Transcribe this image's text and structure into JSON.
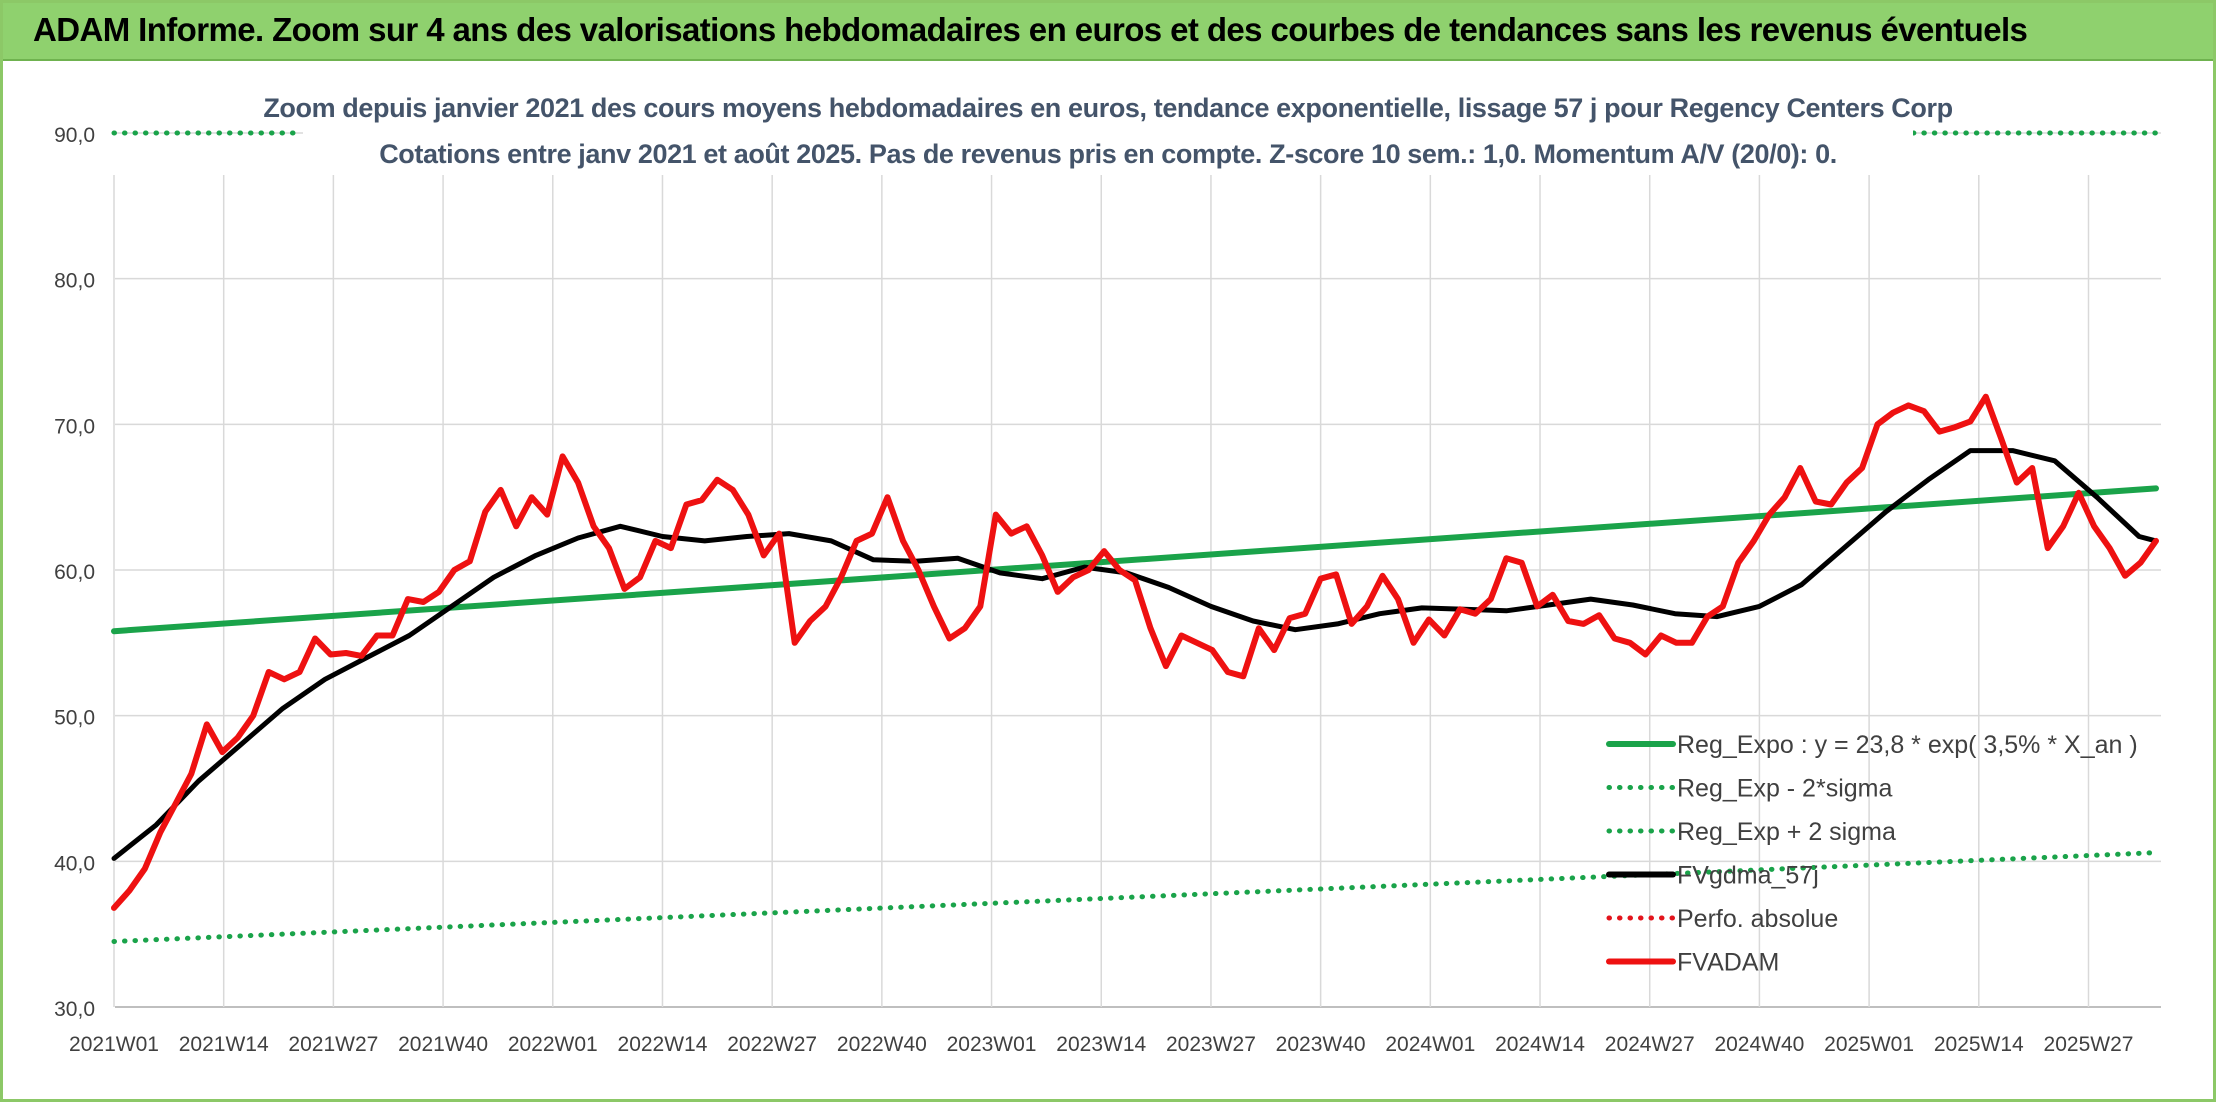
{
  "banner": {
    "title": "ADAM Informe. Zoom sur 4 ans des valorisations hebdomadaires en euros et des courbes de tendances sans les revenus éventuels"
  },
  "chart_data": {
    "type": "line",
    "title_line1": "Zoom depuis janvier 2021 des cours moyens hebdomadaires en euros, tendance exponentielle, lissage 57 j pour Regency Centers Corp",
    "title_line2": "Cotations entre janv 2021 et août 2025. Pas de revenus pris en compte. Z-score 10 sem.: 1,0. Momentum A/V (20/0): 0.",
    "ylim": [
      30,
      90
    ],
    "y_ticks": [
      "30,0",
      "40,0",
      "50,0",
      "60,0",
      "70,0",
      "80,0",
      "90,0"
    ],
    "x_ticks": [
      "2021W01",
      "2021W14",
      "2021W27",
      "2021W40",
      "2022W01",
      "2022W14",
      "2022W27",
      "2022W40",
      "2023W01",
      "2023W14",
      "2023W27",
      "2023W40",
      "2024W01",
      "2024W14",
      "2024W27",
      "2024W40",
      "2025W01",
      "2025W14",
      "2025W27"
    ],
    "grid": true,
    "legend_position": "bottom-right",
    "series": [
      {
        "name": "Reg_Expo : y = 23,8 * exp( 3,5% *  X_an )",
        "color": "#1aa34a",
        "style": "solid",
        "width": 6,
        "points": [
          [
            0,
            55.8
          ],
          [
            242,
            65.6
          ]
        ]
      },
      {
        "name": "Reg_Exp - 2*sigma",
        "color": "#1aa34a",
        "style": "dotted",
        "width": 5,
        "points": [
          [
            0,
            34.5
          ],
          [
            242,
            40.6
          ]
        ]
      },
      {
        "name": "Reg_Exp + 2 sigma",
        "color": "#1aa34a",
        "style": "dotted",
        "width": 5,
        "points": [
          [
            0,
            90.0
          ],
          [
            22,
            90.0
          ],
          [
            212,
            90.0
          ],
          [
            242,
            90.0
          ]
        ],
        "segments": [
          [
            0,
            22
          ],
          [
            212,
            242
          ]
        ]
      },
      {
        "name": "FVgdma_57j",
        "color": "#000000",
        "style": "solid",
        "width": 5,
        "points": [
          [
            0,
            40.2
          ],
          [
            5,
            42.5
          ],
          [
            10,
            45.5
          ],
          [
            15,
            48
          ],
          [
            20,
            50.5
          ],
          [
            25,
            52.5
          ],
          [
            30,
            54
          ],
          [
            35,
            55.5
          ],
          [
            40,
            57.5
          ],
          [
            45,
            59.5
          ],
          [
            50,
            61
          ],
          [
            55,
            62.2
          ],
          [
            60,
            63
          ],
          [
            65,
            62.3
          ],
          [
            70,
            62
          ],
          [
            75,
            62.3
          ],
          [
            80,
            62.5
          ],
          [
            85,
            62
          ],
          [
            90,
            60.7
          ],
          [
            95,
            60.6
          ],
          [
            100,
            60.8
          ],
          [
            105,
            59.8
          ],
          [
            110,
            59.4
          ],
          [
            115,
            60.2
          ],
          [
            120,
            59.8
          ],
          [
            125,
            58.8
          ],
          [
            130,
            57.5
          ],
          [
            135,
            56.5
          ],
          [
            140,
            55.9
          ],
          [
            145,
            56.3
          ],
          [
            150,
            57
          ],
          [
            155,
            57.4
          ],
          [
            160,
            57.3
          ],
          [
            165,
            57.2
          ],
          [
            170,
            57.6
          ],
          [
            175,
            58
          ],
          [
            180,
            57.6
          ],
          [
            185,
            57
          ],
          [
            190,
            56.8
          ],
          [
            195,
            57.5
          ],
          [
            200,
            59
          ],
          [
            205,
            61.5
          ],
          [
            210,
            64
          ],
          [
            215,
            66.2
          ],
          [
            220,
            68.2
          ],
          [
            225,
            68.2
          ],
          [
            230,
            67.5
          ],
          [
            235,
            65
          ],
          [
            240,
            62.3
          ],
          [
            242,
            62
          ]
        ]
      },
      {
        "name": "Perfo. absolue",
        "color": "#e3141c",
        "style": "dotted",
        "width": 4,
        "points": []
      },
      {
        "name": "FVADAM",
        "color": "#ee1111",
        "style": "solid",
        "width": 6,
        "points": [
          [
            0,
            36.8
          ],
          [
            2,
            38
          ],
          [
            4,
            39.5
          ],
          [
            6,
            42
          ],
          [
            8,
            44
          ],
          [
            10,
            46
          ],
          [
            12,
            49.4
          ],
          [
            14,
            47.5
          ],
          [
            16,
            48.5
          ],
          [
            18,
            50
          ],
          [
            20,
            53
          ],
          [
            22,
            52.5
          ],
          [
            24,
            53
          ],
          [
            26,
            55.3
          ],
          [
            28,
            54.2
          ],
          [
            30,
            54.3
          ],
          [
            32,
            54.1
          ],
          [
            34,
            55.5
          ],
          [
            36,
            55.5
          ],
          [
            38,
            58
          ],
          [
            40,
            57.8
          ],
          [
            42,
            58.5
          ],
          [
            44,
            60
          ],
          [
            46,
            60.6
          ],
          [
            48,
            64
          ],
          [
            50,
            65.5
          ],
          [
            52,
            63
          ],
          [
            54,
            65
          ],
          [
            56,
            63.8
          ],
          [
            58,
            67.8
          ],
          [
            60,
            66
          ],
          [
            62,
            63
          ],
          [
            64,
            61.5
          ],
          [
            66,
            58.7
          ],
          [
            68,
            59.5
          ],
          [
            70,
            62
          ],
          [
            72,
            61.5
          ],
          [
            74,
            64.5
          ],
          [
            76,
            64.8
          ],
          [
            78,
            66.2
          ],
          [
            80,
            65.5
          ],
          [
            82,
            63.8
          ],
          [
            84,
            61
          ],
          [
            86,
            62.5
          ],
          [
            88,
            55
          ],
          [
            90,
            56.5
          ],
          [
            92,
            57.5
          ],
          [
            94,
            59.5
          ],
          [
            96,
            62
          ],
          [
            98,
            62.5
          ],
          [
            100,
            65
          ],
          [
            102,
            62
          ],
          [
            104,
            60
          ],
          [
            106,
            57.5
          ],
          [
            108,
            55.3
          ],
          [
            110,
            56
          ],
          [
            112,
            57.5
          ],
          [
            114,
            63.8
          ],
          [
            116,
            62.5
          ],
          [
            118,
            63
          ],
          [
            120,
            61
          ],
          [
            122,
            58.5
          ],
          [
            124,
            59.5
          ],
          [
            126,
            60
          ],
          [
            128,
            61.3
          ],
          [
            130,
            60
          ],
          [
            132,
            59.3
          ],
          [
            134,
            56
          ],
          [
            136,
            53.4
          ],
          [
            138,
            55.5
          ],
          [
            140,
            55
          ],
          [
            142,
            54.5
          ],
          [
            144,
            53
          ],
          [
            146,
            52.7
          ],
          [
            148,
            56
          ],
          [
            150,
            54.5
          ],
          [
            152,
            56.7
          ],
          [
            154,
            57
          ],
          [
            156,
            59.4
          ],
          [
            158,
            59.7
          ],
          [
            160,
            56.3
          ],
          [
            162,
            57.5
          ],
          [
            164,
            59.6
          ],
          [
            166,
            58
          ],
          [
            168,
            55
          ],
          [
            170,
            56.6
          ],
          [
            172,
            55.5
          ],
          [
            174,
            57.3
          ],
          [
            176,
            57
          ],
          [
            178,
            58
          ],
          [
            180,
            60.8
          ],
          [
            182,
            60.5
          ],
          [
            184,
            57.5
          ],
          [
            186,
            58.3
          ],
          [
            188,
            56.5
          ],
          [
            190,
            56.3
          ],
          [
            192,
            56.9
          ],
          [
            194,
            55.3
          ],
          [
            196,
            55
          ],
          [
            198,
            54.2
          ],
          [
            200,
            55.5
          ],
          [
            202,
            55
          ],
          [
            204,
            55
          ],
          [
            206,
            56.8
          ],
          [
            208,
            57.5
          ],
          [
            210,
            60.5
          ],
          [
            212,
            62
          ],
          [
            214,
            63.8
          ],
          [
            216,
            65
          ],
          [
            218,
            67
          ],
          [
            220,
            64.7
          ],
          [
            222,
            64.5
          ],
          [
            224,
            66
          ],
          [
            226,
            67
          ],
          [
            228,
            70
          ],
          [
            230,
            70.8
          ],
          [
            232,
            71.3
          ],
          [
            234,
            70.9
          ],
          [
            236,
            69.5
          ],
          [
            238,
            69.8
          ],
          [
            240,
            70.2
          ],
          [
            242,
            71.9
          ],
          [
            244,
            69
          ],
          [
            246,
            66
          ],
          [
            248,
            67
          ],
          [
            250,
            61.5
          ],
          [
            252,
            63
          ],
          [
            254,
            65.3
          ],
          [
            256,
            63
          ],
          [
            258,
            61.5
          ],
          [
            260,
            59.6
          ],
          [
            262,
            60.5
          ],
          [
            264,
            62
          ]
        ]
      }
    ]
  }
}
